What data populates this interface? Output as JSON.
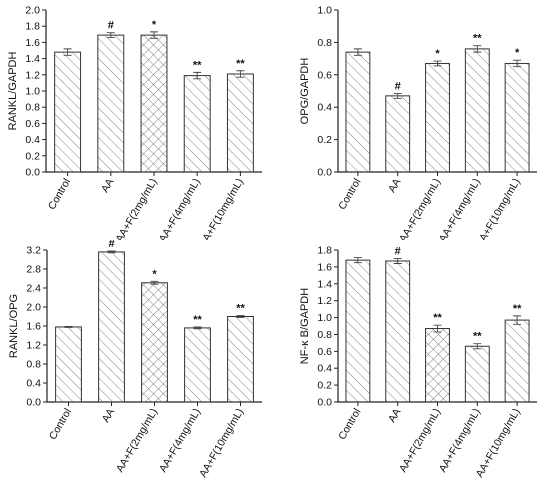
{
  "chart_data": [
    {
      "type": "bar",
      "ylabel": "RANKL/GAPDH",
      "ylim": [
        0,
        2.0
      ],
      "yticks": [
        "0.0",
        "0.2",
        "0.4",
        "0.6",
        "0.8",
        "1.0",
        "1.2",
        "1.4",
        "1.6",
        "1.8",
        "2.0"
      ],
      "yticks_values": [
        0,
        0.2,
        0.4,
        0.6,
        0.8,
        1.0,
        1.2,
        1.4,
        1.6,
        1.8,
        2.0
      ],
      "categories": [
        "Control",
        "AA",
        "AA+F(2mg/mL)",
        "AA+F(4mg/mL)",
        "AA+F(10mg/mL)"
      ],
      "values": [
        1.48,
        1.69,
        1.69,
        1.19,
        1.21
      ],
      "errors": [
        0.04,
        0.03,
        0.04,
        0.04,
        0.04
      ],
      "labels": [
        "",
        "#",
        "*",
        "**",
        "**"
      ],
      "patterns": [
        "diag",
        "diag",
        "cross",
        "diag",
        "diag"
      ]
    },
    {
      "type": "bar",
      "ylabel": "OPG/GAPDH",
      "ylim": [
        0,
        1.0
      ],
      "yticks": [
        "0.0",
        "0.2",
        "0.4",
        "0.6",
        "0.8",
        "1.0"
      ],
      "yticks_values": [
        0,
        0.2,
        0.4,
        0.6,
        0.8,
        1.0
      ],
      "categories": [
        "Control",
        "AA",
        "AA+F(2mg/mL)",
        "AA+F(4mg/mL)",
        "AA+F(10mg/mL)"
      ],
      "values": [
        0.74,
        0.47,
        0.67,
        0.76,
        0.67
      ],
      "errors": [
        0.02,
        0.015,
        0.015,
        0.02,
        0.02
      ],
      "labels": [
        "",
        "#",
        "*",
        "**",
        "*"
      ],
      "patterns": [
        "diag",
        "diag",
        "diag",
        "diag",
        "diag"
      ]
    },
    {
      "type": "bar",
      "ylabel": "RANKL/OPG",
      "ylim": [
        0,
        3.2
      ],
      "yticks": [
        "0.0",
        "0.4",
        "0.8",
        "1.2",
        "1.6",
        "2.0",
        "2.4",
        "2.8",
        "3.2"
      ],
      "yticks_values": [
        0,
        0.4,
        0.8,
        1.2,
        1.6,
        2.0,
        2.4,
        2.8,
        3.2
      ],
      "categories": [
        "Control",
        "AA",
        "AA+F(2mg/mL)",
        "AA+F(4mg/mL)",
        "AA+F(10mg/mL)"
      ],
      "values": [
        1.58,
        3.16,
        2.51,
        1.56,
        1.8
      ],
      "errors": [
        0.01,
        0.02,
        0.03,
        0.02,
        0.02
      ],
      "labels": [
        "",
        "#",
        "*",
        "**",
        "**"
      ],
      "patterns": [
        "diag",
        "diag",
        "cross",
        "diag",
        "diag"
      ]
    },
    {
      "type": "bar",
      "ylabel": "NF-κ B/GAPDH",
      "ylim": [
        0,
        1.8
      ],
      "yticks": [
        "0.0",
        "0.2",
        "0.4",
        "0.6",
        "0.8",
        "1.0",
        "1.2",
        "1.4",
        "1.6",
        "1.8"
      ],
      "yticks_values": [
        0,
        0.2,
        0.4,
        0.6,
        0.8,
        1.0,
        1.2,
        1.4,
        1.6,
        1.8
      ],
      "categories": [
        "Control",
        "AA",
        "AA+F(2mg/mL)",
        "AA+F(4mg/mL)",
        "AA+F(10mg/mL)"
      ],
      "values": [
        1.68,
        1.67,
        0.87,
        0.66,
        0.97
      ],
      "errors": [
        0.03,
        0.03,
        0.04,
        0.03,
        0.05
      ],
      "labels": [
        "",
        "#",
        "**",
        "**",
        "**"
      ],
      "patterns": [
        "diag",
        "diag",
        "cross",
        "diag",
        "diag"
      ]
    }
  ]
}
